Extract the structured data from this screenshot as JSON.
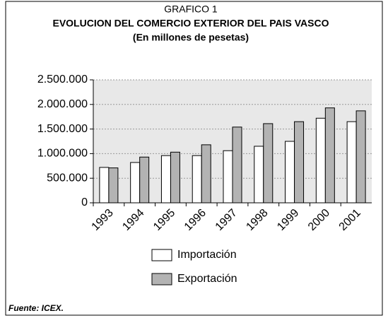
{
  "chart_data": {
    "type": "bar",
    "title": "EVOLUCION DEL COMERCIO EXTERIOR DEL PAIS VASCO",
    "supertitle": "GRAFICO 1",
    "subtitle": "(En millones de pesetas)",
    "source": "Fuente: ICEX.",
    "categories": [
      "1993",
      "1994",
      "1995",
      "1996",
      "1997",
      "1998",
      "1999",
      "2000",
      "2001"
    ],
    "series": [
      {
        "name": "Importación",
        "color": "#ffffff",
        "values": [
          720000,
          820000,
          960000,
          960000,
          1060000,
          1150000,
          1250000,
          1720000,
          1650000
        ]
      },
      {
        "name": "Exportación",
        "color": "#b3b3b3",
        "values": [
          710000,
          930000,
          1030000,
          1180000,
          1540000,
          1610000,
          1650000,
          1930000,
          1870000
        ]
      }
    ],
    "ylim": [
      0,
      2500000
    ],
    "yticks": [
      0,
      {
        "value": 500000,
        "label": "500.000"
      },
      {
        "value": 1000000,
        "label": "1.000.000"
      },
      {
        "value": 1500000,
        "label": "1.500.000"
      },
      {
        "value": 2000000,
        "label": "2.000.000"
      },
      {
        "value": 2500000,
        "label": "2.500.000"
      }
    ],
    "grid": true,
    "legend": "bottom"
  }
}
